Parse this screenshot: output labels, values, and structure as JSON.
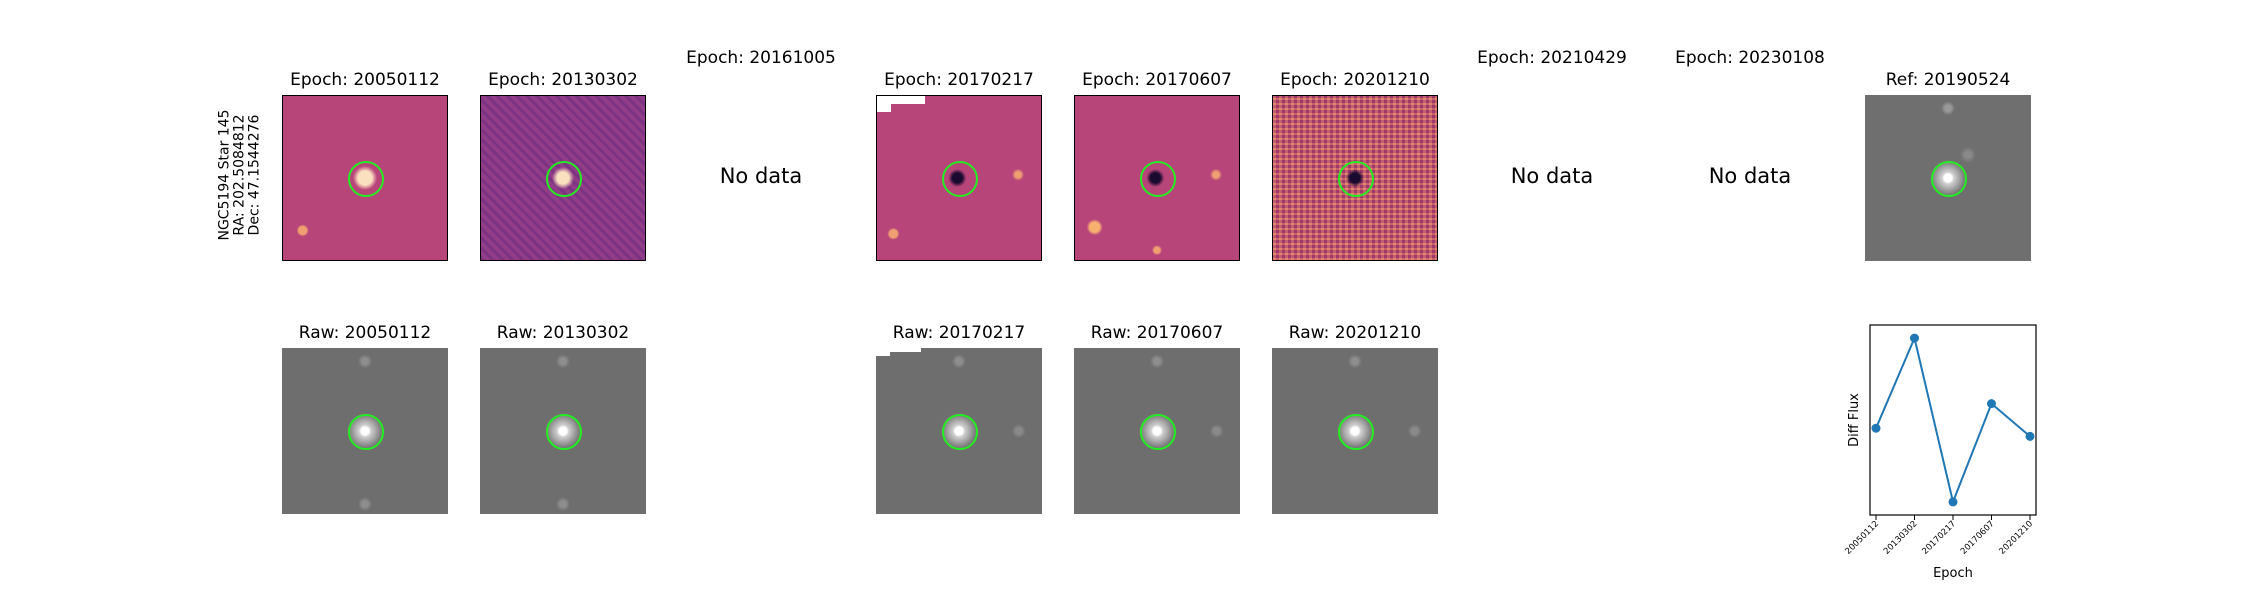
{
  "star_info": {
    "name": "NGC5194 Star 145",
    "ra": "RA: 202.5084812",
    "dec": "Dec: 47.1544276"
  },
  "no_data_text": "No data",
  "diff_titles": [
    "Epoch: 20050112",
    "Epoch: 20130302",
    "Epoch: 20161005",
    "Epoch: 20170217",
    "Epoch: 20170607",
    "Epoch: 20201210",
    "Epoch: 20210429",
    "Epoch: 20230108"
  ],
  "raw_titles": [
    "Raw: 20050112",
    "Raw: 20130302",
    "Raw: 20170217",
    "Raw: 20170607",
    "Raw: 20201210"
  ],
  "ref_title": "Ref: 20190524",
  "colors": {
    "circle": "#22ee22",
    "line": "#1f77b4",
    "magma_base": "#b8457a",
    "raw_gray": "#6e6e6e"
  },
  "chart_data": {
    "type": "line",
    "title": "",
    "xlabel": "Epoch",
    "ylabel": "Diff Flux",
    "categories": [
      "20050112",
      "20130302",
      "20170217",
      "20170607",
      "20201210"
    ],
    "values": [
      0.45,
      1.0,
      0.0,
      0.6,
      0.4
    ],
    "ylim": [
      -0.08,
      1.08
    ],
    "grid": false
  }
}
